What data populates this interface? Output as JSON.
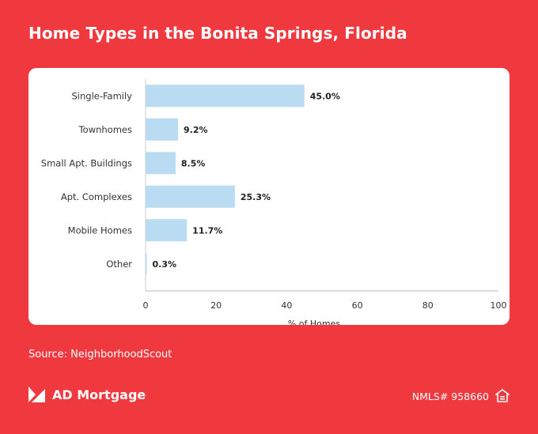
{
  "header": {
    "title": "Home Types in the Bonita Springs, Florida"
  },
  "footer": {
    "source": "Source: NeighborhoodScout",
    "brand_name": "AD Mortgage",
    "nmls": "NMLS# 958660",
    "brand_logo_icon": "ad-mortgage-logo-icon",
    "housing_icon": "equal-housing-opportunity-icon"
  },
  "colors": {
    "background": "#f0383f",
    "bar": "#b9dcf3"
  },
  "chart_data": {
    "type": "bar",
    "orientation": "horizontal",
    "categories": [
      "Single-Family",
      "Townhomes",
      "Small Apt. Buildings",
      "Apt. Complexes",
      "Mobile Homes",
      "Other"
    ],
    "values": [
      45.0,
      9.2,
      8.5,
      25.3,
      11.7,
      0.3
    ],
    "value_labels": [
      "45.0%",
      "9.2%",
      "8.5%",
      "25.3%",
      "11.7%",
      "0.3%"
    ],
    "xlabel": "% of Homes",
    "ylabel": "",
    "xlim": [
      0,
      100
    ],
    "xticks": [
      0,
      20,
      40,
      60,
      80,
      100
    ],
    "grid": false
  }
}
